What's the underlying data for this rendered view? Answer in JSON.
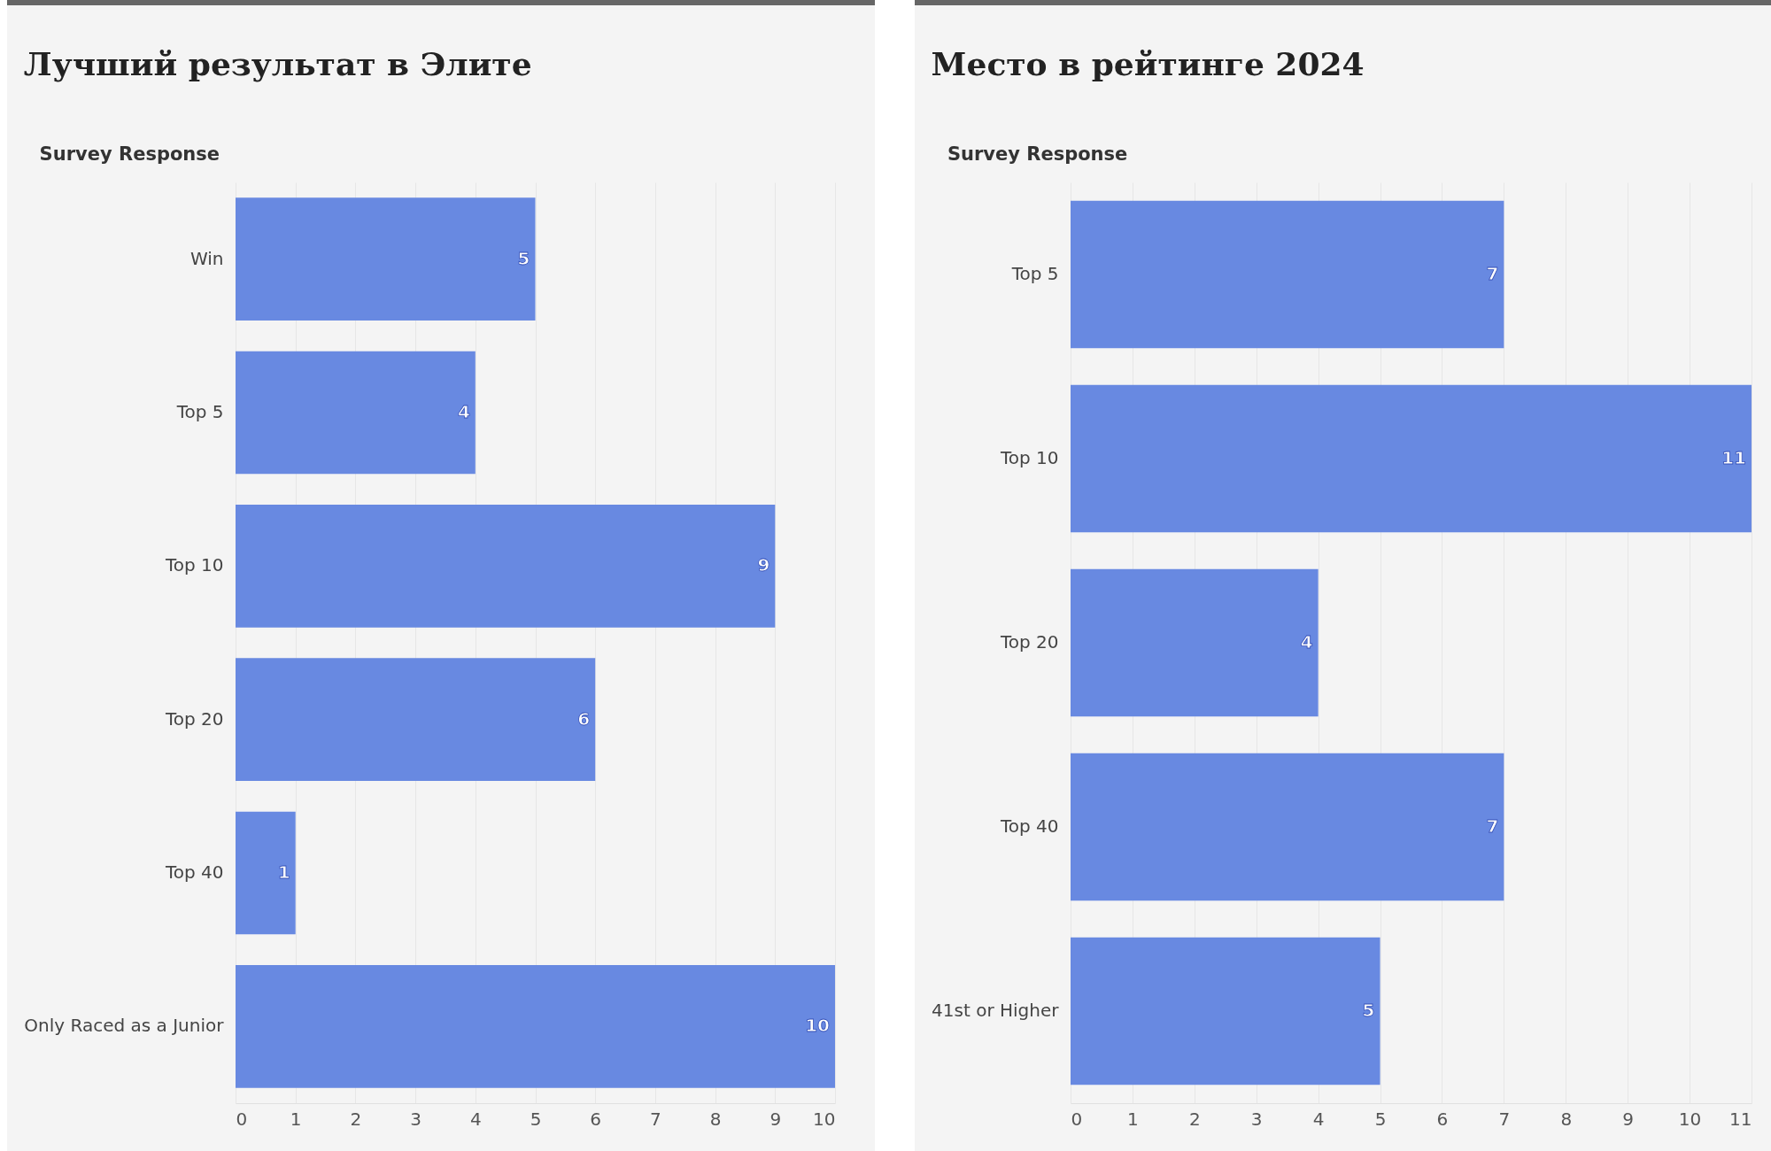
{
  "chart_data": [
    {
      "type": "bar",
      "orientation": "horizontal",
      "title": "Лучший результат в Элите",
      "ylabel": "Survey Response",
      "categories": [
        "Win",
        "Top 5",
        "Top 10",
        "Top 20",
        "Top 40",
        "Only Raced as a Junior"
      ],
      "values": [
        5,
        4,
        9,
        6,
        1,
        10
      ],
      "color": "#6889e1",
      "xlim": [
        0,
        10
      ],
      "xticks": [
        0,
        1,
        2,
        3,
        4,
        5,
        6,
        7,
        8,
        9,
        10
      ],
      "grid": "x",
      "data_labels": true
    },
    {
      "type": "bar",
      "orientation": "horizontal",
      "title": "Место в рейтинге 2024",
      "ylabel": "Survey Response",
      "categories": [
        "Top 5",
        "Top 10",
        "Top 20",
        "Top 40",
        "41st or Higher"
      ],
      "values": [
        7,
        11,
        4,
        7,
        5
      ],
      "color": "#6889e1",
      "xlim": [
        0,
        11
      ],
      "xticks": [
        0,
        1,
        2,
        3,
        4,
        5,
        6,
        7,
        8,
        9,
        10,
        11
      ],
      "grid": "x",
      "data_labels": true
    }
  ]
}
